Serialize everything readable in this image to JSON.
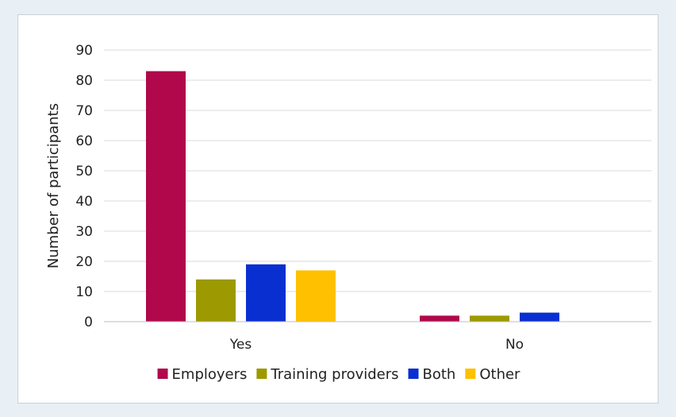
{
  "chart_data": {
    "type": "bar",
    "title": "",
    "xlabel": "",
    "ylabel": "Number of participants",
    "categories": [
      "Yes",
      "No"
    ],
    "ylim": [
      0,
      90
    ],
    "yticks": [
      0,
      10,
      20,
      30,
      40,
      50,
      60,
      70,
      80,
      90
    ],
    "grid": true,
    "legend_position": "bottom",
    "series": [
      {
        "name": "Employers",
        "color": "#b0084a",
        "values": [
          83,
          2
        ]
      },
      {
        "name": "Training providers",
        "color": "#9c9a00",
        "values": [
          14,
          2
        ]
      },
      {
        "name": "Both",
        "color": "#0a2fd1",
        "values": [
          19,
          3
        ]
      },
      {
        "name": "Other",
        "color": "#ffc000",
        "values": [
          17,
          0
        ]
      }
    ]
  }
}
